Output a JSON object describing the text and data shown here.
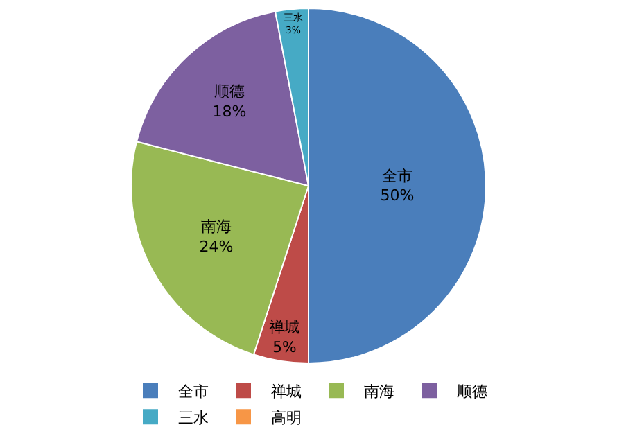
{
  "chart_data": {
    "type": "pie",
    "categories": [
      "全市",
      "禅城",
      "南海",
      "顺德",
      "三水",
      "高明"
    ],
    "values": [
      50,
      5,
      24,
      18,
      3,
      0
    ],
    "value_labels": [
      "50%",
      "5%",
      "24%",
      "18%",
      "3%",
      null
    ],
    "colors": [
      "#4a7ebb",
      "#be4b48",
      "#98b954",
      "#7d60a0",
      "#46aac5",
      "#f79646"
    ],
    "legend": "bottom"
  }
}
